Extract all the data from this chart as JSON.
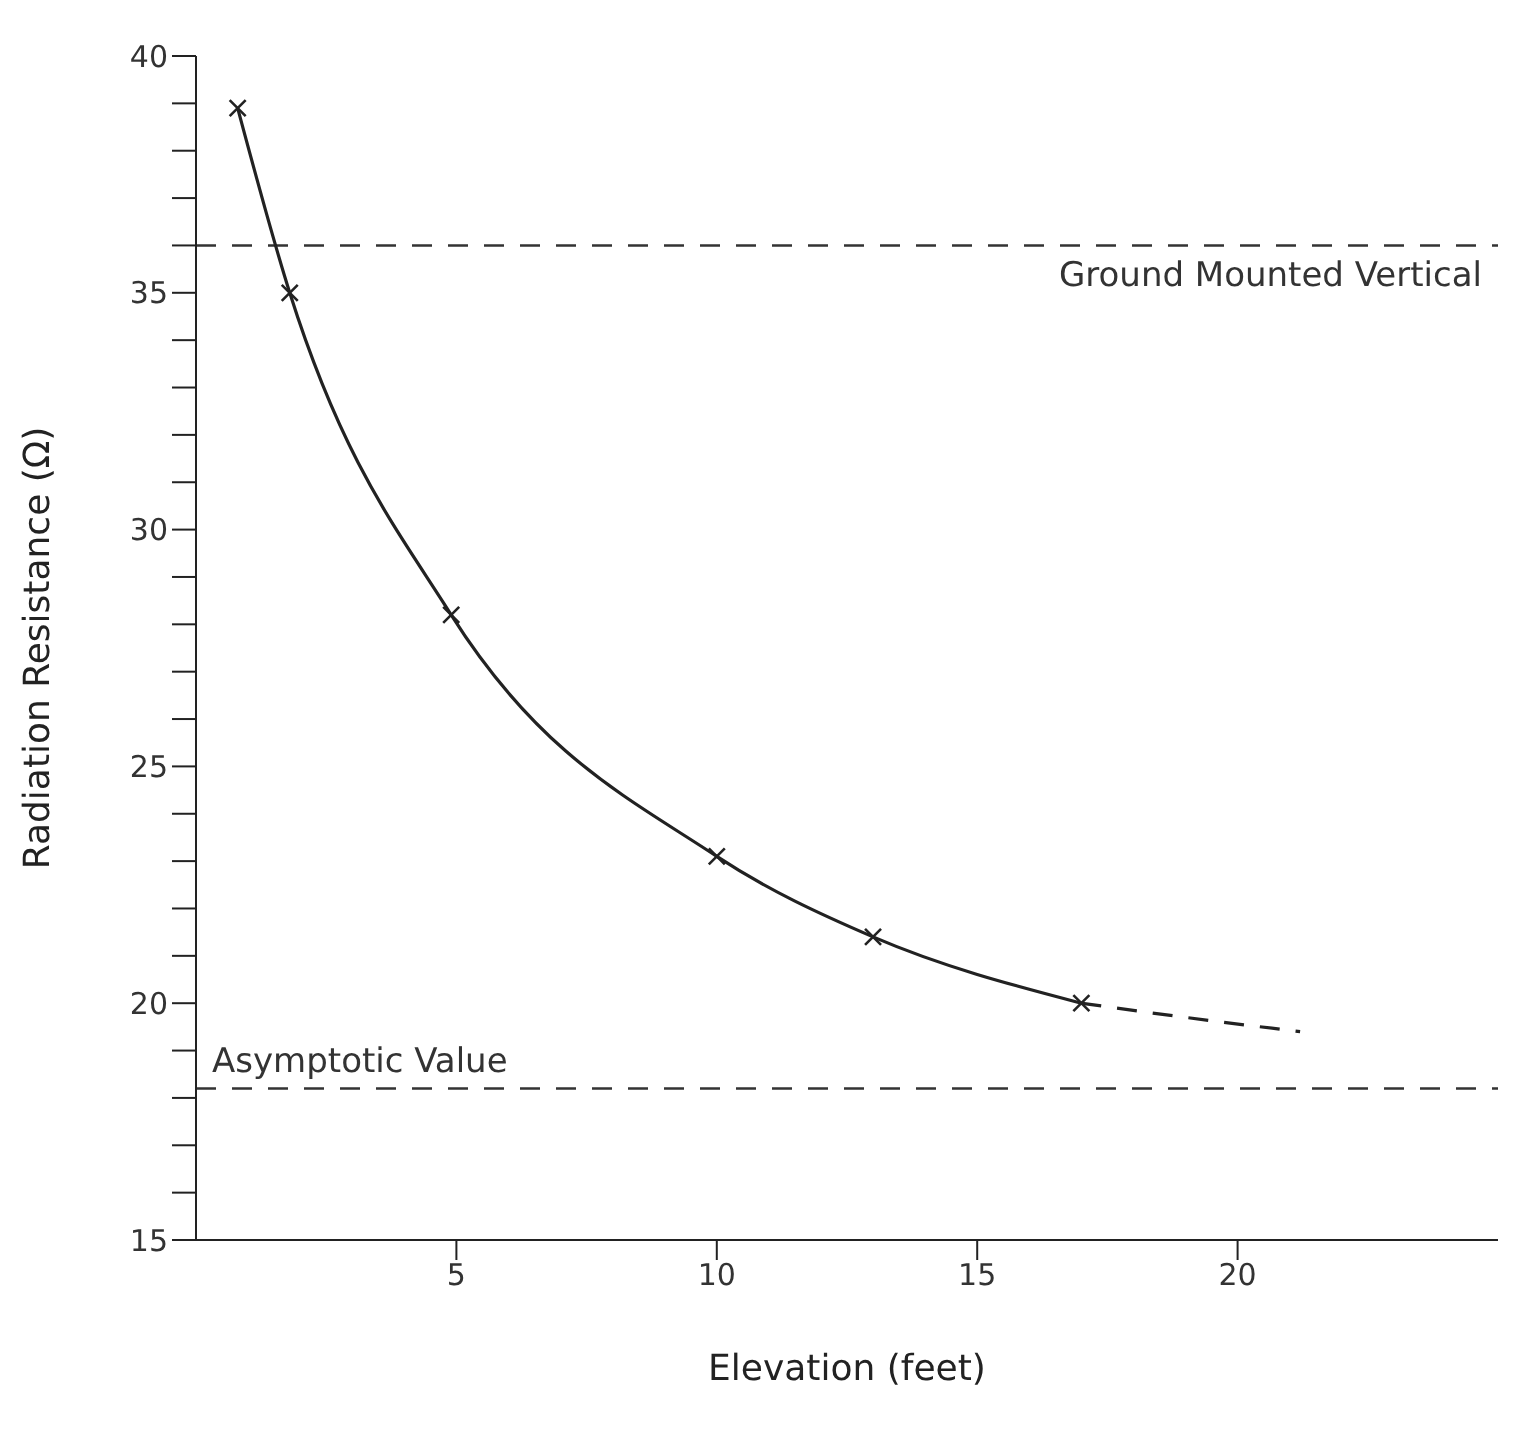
{
  "chart_data": {
    "type": "line",
    "xlabel": "Elevation (feet)",
    "ylabel": "Radiation Resistance (Ω)",
    "series": [
      {
        "color": "#222222",
        "x": [
          0.8,
          1.8,
          4.9,
          10,
          13,
          17
        ],
        "values": [
          38.9,
          35,
          28.2,
          23.1,
          21.4,
          20
        ],
        "marker": "cross",
        "line_style": "solid"
      },
      {
        "color": "#222222",
        "x": [
          17,
          19,
          21.2
        ],
        "values": [
          20,
          19.7,
          19.4
        ],
        "marker": "none",
        "line_style": "dashed"
      }
    ],
    "xlim": [
      0,
      25
    ],
    "xticks": [
      5,
      10,
      15,
      20
    ],
    "ylim": [
      15,
      40
    ],
    "yticks": [
      15,
      {
        "value": 16,
        "label": null
      },
      {
        "value": 17,
        "label": null
      },
      {
        "value": 18,
        "label": null
      },
      {
        "value": 19,
        "label": null
      },
      20,
      {
        "value": 21,
        "label": null
      },
      {
        "value": 22,
        "label": null
      },
      {
        "value": 23,
        "label": null
      },
      {
        "value": 24,
        "label": null
      },
      25,
      {
        "value": 26,
        "label": null
      },
      {
        "value": 27,
        "label": null
      },
      {
        "value": 28,
        "label": null
      },
      {
        "value": 29,
        "label": null
      },
      30,
      {
        "value": 31,
        "label": null
      },
      {
        "value": 32,
        "label": null
      },
      {
        "value": 33,
        "label": null
      },
      {
        "value": 34,
        "label": null
      },
      35,
      {
        "value": 36,
        "label": null
      },
      {
        "value": 37,
        "label": null
      },
      {
        "value": 38,
        "label": null
      },
      {
        "value": 39,
        "label": null
      },
      40
    ],
    "ref_lines": [
      {
        "axis": "y",
        "value": 36,
        "label": "Ground Mounted Vertical",
        "color": "#333333",
        "line_style": "dashed"
      },
      {
        "axis": "y",
        "value": 18.2,
        "label": "Asymptotic Value",
        "color": "#333333",
        "line_style": "dashed"
      }
    ]
  }
}
